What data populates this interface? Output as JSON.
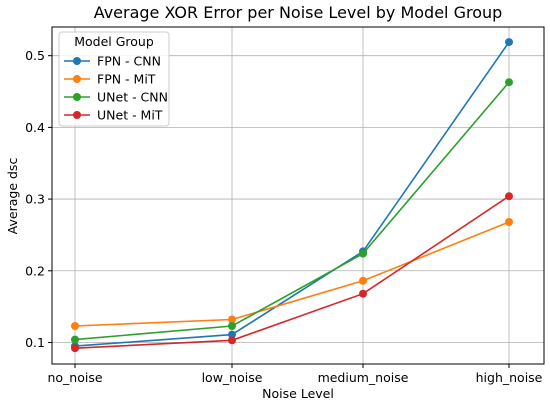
{
  "chart_data": {
    "type": "line",
    "title": "Average XOR Error per Noise Level by Model Group",
    "xlabel": "Noise Level",
    "ylabel": "Average dsc",
    "categories": [
      "no_noise",
      "low_noise",
      "medium_noise",
      "high_noise"
    ],
    "ylim": [
      0.07,
      0.54
    ],
    "yticks": [
      0.1,
      0.2,
      0.3,
      0.4,
      0.5
    ],
    "ytick_labels": [
      "0.1",
      "0.2",
      "0.3",
      "0.4",
      "0.5"
    ],
    "grid": true,
    "legend": {
      "title": "Model Group",
      "placement": "top-left"
    },
    "series": [
      {
        "name": "FPN - CNN",
        "color": "#1f77b4",
        "values": [
          0.095,
          0.111,
          0.227,
          0.519
        ]
      },
      {
        "name": "FPN - MiT",
        "color": "#ff7f0e",
        "values": [
          0.123,
          0.132,
          0.186,
          0.268
        ]
      },
      {
        "name": "UNet - CNN",
        "color": "#2ca02c",
        "values": [
          0.104,
          0.123,
          0.224,
          0.463
        ]
      },
      {
        "name": "UNet - MiT",
        "color": "#d62728",
        "values": [
          0.092,
          0.103,
          0.168,
          0.304
        ]
      }
    ]
  }
}
